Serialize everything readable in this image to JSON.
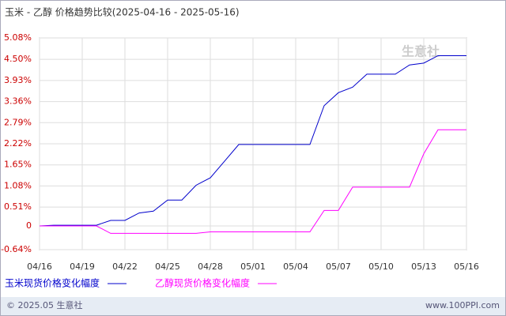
{
  "chart_data": {
    "type": "line",
    "title": "玉米 - 乙醇 价格趋势比较(2025-04-16 - 2025-05-16)",
    "categories": [
      "04/16",
      null,
      null,
      "04/19",
      null,
      null,
      "04/22",
      null,
      null,
      "04/25",
      null,
      null,
      "04/28",
      null,
      null,
      "05/01",
      null,
      null,
      "05/04",
      null,
      null,
      "05/07",
      null,
      null,
      "05/10",
      null,
      null,
      "05/13",
      null,
      null,
      "05/16"
    ],
    "series": [
      {
        "name": "玉米现货价格变化幅度",
        "color": "#0000cc",
        "values": [
          0,
          0.02,
          0.02,
          0.02,
          0.02,
          0.15,
          0.15,
          0.35,
          0.4,
          0.7,
          0.7,
          1.1,
          1.3,
          1.75,
          2.2,
          2.2,
          2.2,
          2.2,
          2.2,
          2.2,
          3.25,
          3.6,
          3.75,
          4.1,
          4.1,
          4.1,
          4.35,
          4.4,
          4.6,
          4.6,
          4.6
        ]
      },
      {
        "name": "乙醇现货价格变化幅度",
        "color": "#ff00ff",
        "values": [
          0,
          0,
          0,
          0,
          0,
          -0.2,
          -0.2,
          -0.2,
          -0.2,
          -0.2,
          -0.2,
          -0.2,
          -0.16,
          -0.16,
          -0.16,
          -0.16,
          -0.16,
          -0.16,
          -0.16,
          -0.16,
          0.42,
          0.42,
          1.05,
          1.05,
          1.05,
          1.05,
          1.05,
          1.95,
          2.6,
          2.6,
          2.6
        ]
      }
    ],
    "ylim": [
      -0.64,
      5.08
    ],
    "yticks": [
      {
        "value": -0.64,
        "label": "-0.64%"
      },
      0,
      {
        "value": 0.51,
        "label": "0.51%"
      },
      {
        "value": 1.08,
        "label": "1.08%"
      },
      {
        "value": 1.65,
        "label": "1.65%"
      },
      {
        "value": 2.22,
        "label": "2.22%"
      },
      {
        "value": 2.79,
        "label": "2.79%"
      },
      {
        "value": 3.36,
        "label": "3.36%"
      },
      {
        "value": 3.93,
        "label": "3.93%"
      },
      {
        "value": 4.5,
        "label": "4.50%"
      },
      {
        "value": 5.08,
        "label": "5.08%"
      }
    ],
    "grid": true,
    "tick_color": "#cc0000"
  },
  "watermark": "生意社",
  "footer": {
    "copyright": "© 2025.05 生意社",
    "site": "www.100PPI.com"
  }
}
